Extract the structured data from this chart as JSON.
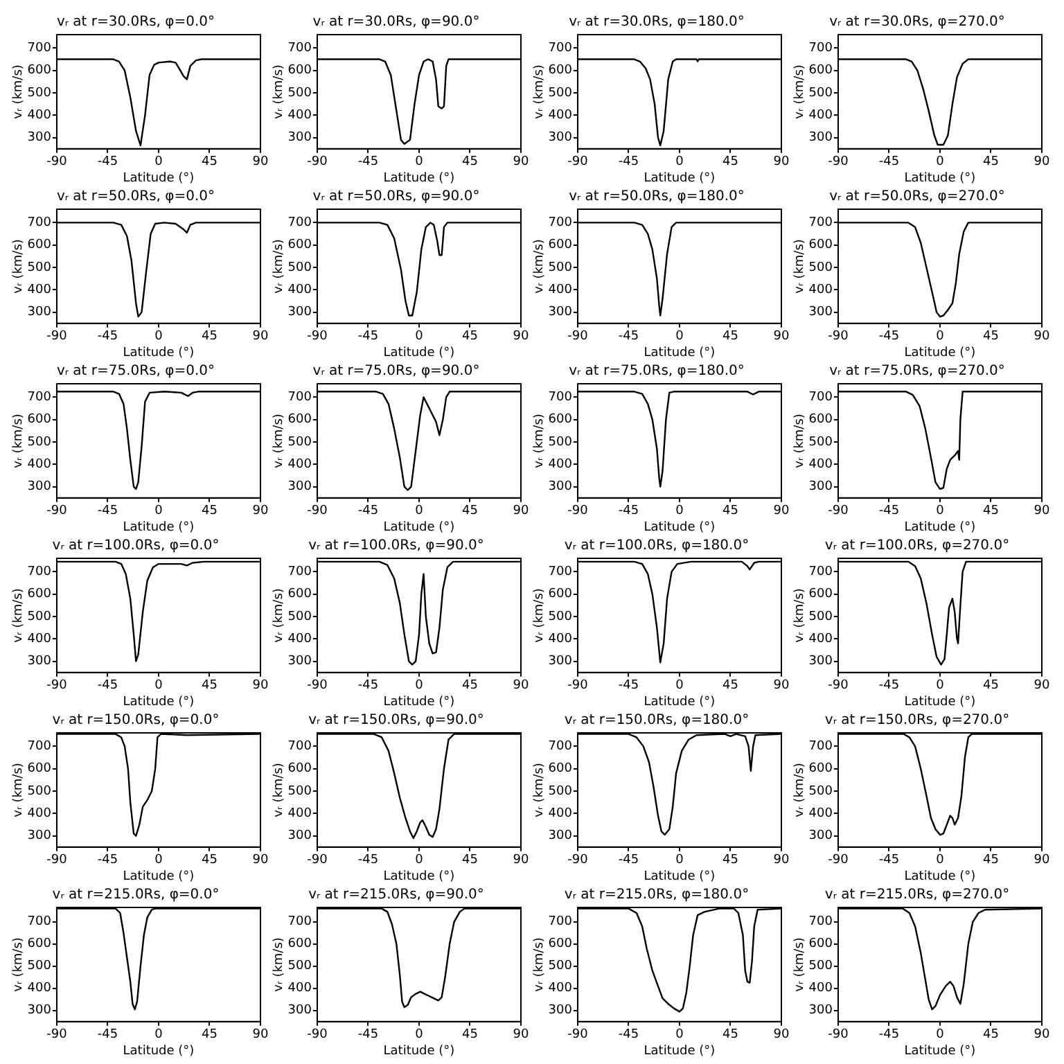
{
  "chart_data": [
    {
      "type": "line",
      "title": "vᵣ at r=30.0Rs, φ=0.0°",
      "xlabel": "Latitude (°)",
      "ylabel": "vᵣ (km/s)",
      "xlim": [
        -90,
        90
      ],
      "xticks": [
        -90,
        -45,
        0,
        45,
        90
      ],
      "ylim": [
        250,
        760
      ],
      "yticks": [
        300,
        400,
        500,
        600,
        700
      ],
      "marker": "none",
      "line_style": "solid",
      "series": [
        {
          "color": "#000000",
          "x": [
            -90,
            -40,
            -35,
            -30,
            -25,
            -20,
            -16,
            -12,
            -8,
            -4,
            0,
            10,
            15,
            18,
            22,
            25,
            28,
            33,
            38,
            90
          ],
          "values": [
            650,
            650,
            640,
            600,
            480,
            330,
            265,
            400,
            580,
            625,
            635,
            640,
            635,
            610,
            575,
            560,
            620,
            645,
            650,
            650
          ]
        }
      ]
    },
    {
      "type": "line",
      "title": "vᵣ at r=30.0Rs, φ=90.0°",
      "xlabel": "Latitude (°)",
      "ylabel": "vᵣ (km/s)",
      "xlim": [
        -90,
        90
      ],
      "xticks": [
        -90,
        -45,
        0,
        45,
        90
      ],
      "ylim": [
        250,
        760
      ],
      "yticks": [
        300,
        400,
        500,
        600,
        700
      ],
      "marker": "none",
      "line_style": "solid",
      "series": [
        {
          "color": "#000000",
          "x": [
            -90,
            -35,
            -30,
            -25,
            -20,
            -16,
            -13,
            -8,
            -4,
            0,
            4,
            8,
            12,
            15,
            17,
            20,
            22,
            24,
            26,
            90
          ],
          "values": [
            650,
            650,
            640,
            580,
            420,
            290,
            272,
            290,
            450,
            580,
            640,
            650,
            640,
            560,
            440,
            430,
            440,
            620,
            650,
            650
          ]
        }
      ]
    },
    {
      "type": "line",
      "title": "vᵣ at r=30.0Rs, φ=180.0°",
      "xlabel": "Latitude (°)",
      "ylabel": "vᵣ (km/s)",
      "xlim": [
        -90,
        90
      ],
      "xticks": [
        -90,
        -45,
        0,
        45,
        90
      ],
      "ylim": [
        250,
        760
      ],
      "yticks": [
        300,
        400,
        500,
        600,
        700
      ],
      "marker": "none",
      "line_style": "solid",
      "series": [
        {
          "color": "#000000",
          "x": [
            -90,
            -40,
            -35,
            -30,
            -26,
            -22,
            -19,
            -17,
            -14,
            -10,
            -6,
            -3,
            15,
            16,
            17,
            90
          ],
          "values": [
            650,
            650,
            640,
            610,
            560,
            450,
            300,
            265,
            330,
            560,
            640,
            650,
            650,
            640,
            650,
            650
          ]
        }
      ]
    },
    {
      "type": "line",
      "title": "vᵣ at r=30.0Rs, φ=270.0°",
      "xlabel": "Latitude (°)",
      "ylabel": "vᵣ (km/s)",
      "xlim": [
        -90,
        90
      ],
      "xticks": [
        -90,
        -45,
        0,
        45,
        90
      ],
      "ylim": [
        250,
        760
      ],
      "yticks": [
        300,
        400,
        500,
        600,
        700
      ],
      "marker": "none",
      "line_style": "solid",
      "series": [
        {
          "color": "#000000",
          "x": [
            -90,
            -30,
            -25,
            -20,
            -15,
            -10,
            -5,
            -2,
            3,
            7,
            11,
            15,
            20,
            25,
            90
          ],
          "values": [
            650,
            650,
            640,
            600,
            520,
            420,
            310,
            268,
            268,
            310,
            450,
            570,
            630,
            650,
            650
          ]
        }
      ]
    },
    {
      "type": "line",
      "title": "vᵣ at r=50.0Rs, φ=0.0°",
      "xlabel": "Latitude (°)",
      "ylabel": "vᵣ (km/s)",
      "xlim": [
        -90,
        90
      ],
      "xticks": [
        -90,
        -45,
        0,
        45,
        90
      ],
      "ylim": [
        250,
        760
      ],
      "yticks": [
        300,
        400,
        500,
        600,
        700
      ],
      "marker": "none",
      "line_style": "solid",
      "series": [
        {
          "color": "#000000",
          "x": [
            -90,
            -40,
            -33,
            -28,
            -24,
            -20,
            -18,
            -15,
            -11,
            -7,
            -3,
            5,
            15,
            22,
            25,
            28,
            33,
            90
          ],
          "values": [
            700,
            700,
            690,
            640,
            530,
            340,
            280,
            300,
            480,
            650,
            695,
            700,
            695,
            670,
            655,
            690,
            700,
            700
          ]
        }
      ]
    },
    {
      "type": "line",
      "title": "vᵣ at r=50.0Rs, φ=90.0°",
      "xlabel": "Latitude (°)",
      "ylabel": "vᵣ (km/s)",
      "xlim": [
        -90,
        90
      ],
      "xticks": [
        -90,
        -45,
        0,
        45,
        90
      ],
      "ylim": [
        250,
        760
      ],
      "yticks": [
        300,
        400,
        500,
        600,
        700
      ],
      "marker": "none",
      "line_style": "solid",
      "series": [
        {
          "color": "#000000",
          "x": [
            -90,
            -35,
            -28,
            -22,
            -16,
            -12,
            -9,
            -6,
            -2,
            2,
            6,
            10,
            13,
            16,
            18,
            20,
            22,
            25,
            90
          ],
          "values": [
            700,
            700,
            690,
            630,
            490,
            350,
            285,
            285,
            390,
            580,
            680,
            700,
            690,
            620,
            555,
            555,
            680,
            700,
            700
          ]
        }
      ]
    },
    {
      "type": "line",
      "title": "vᵣ at r=50.0Rs, φ=180.0°",
      "xlabel": "Latitude (°)",
      "ylabel": "vᵣ (km/s)",
      "xlim": [
        -90,
        90
      ],
      "xticks": [
        -90,
        -45,
        0,
        45,
        90
      ],
      "ylim": [
        250,
        760
      ],
      "yticks": [
        300,
        400,
        500,
        600,
        700
      ],
      "marker": "none",
      "line_style": "solid",
      "series": [
        {
          "color": "#000000",
          "x": [
            -90,
            -40,
            -33,
            -28,
            -24,
            -20,
            -18,
            -17,
            -15,
            -11,
            -7,
            -3,
            90
          ],
          "values": [
            700,
            700,
            690,
            650,
            580,
            450,
            330,
            285,
            360,
            560,
            680,
            700,
            700
          ]
        }
      ]
    },
    {
      "type": "line",
      "title": "vᵣ at r=50.0Rs, φ=270.0°",
      "xlabel": "Latitude (°)",
      "ylabel": "vᵣ (km/s)",
      "xlim": [
        -90,
        90
      ],
      "xticks": [
        -90,
        -45,
        0,
        45,
        90
      ],
      "ylim": [
        250,
        760
      ],
      "yticks": [
        300,
        400,
        500,
        600,
        700
      ],
      "marker": "none",
      "line_style": "solid",
      "series": [
        {
          "color": "#000000",
          "x": [
            -90,
            -28,
            -22,
            -17,
            -12,
            -7,
            -3,
            0,
            3,
            7,
            11,
            14,
            17,
            21,
            25,
            90
          ],
          "values": [
            700,
            700,
            680,
            610,
            500,
            390,
            300,
            280,
            285,
            310,
            340,
            430,
            560,
            660,
            700,
            700
          ]
        }
      ]
    },
    {
      "type": "line",
      "title": "vᵣ at r=75.0Rs, φ=0.0°",
      "xlabel": "Latitude (°)",
      "ylabel": "vᵣ (km/s)",
      "xlim": [
        -90,
        90
      ],
      "xticks": [
        -90,
        -45,
        0,
        45,
        90
      ],
      "ylim": [
        250,
        760
      ],
      "yticks": [
        300,
        400,
        500,
        600,
        700
      ],
      "marker": "none",
      "line_style": "solid",
      "series": [
        {
          "color": "#000000",
          "x": [
            -90,
            -40,
            -35,
            -31,
            -28,
            -25,
            -22,
            -20,
            -18,
            -15,
            -12,
            -8,
            5,
            20,
            26,
            30,
            35,
            90
          ],
          "values": [
            725,
            725,
            715,
            670,
            560,
            420,
            300,
            290,
            320,
            480,
            680,
            720,
            725,
            720,
            705,
            720,
            725,
            725
          ]
        }
      ]
    },
    {
      "type": "line",
      "title": "vᵣ at r=75.0Rs, φ=90.0°",
      "xlabel": "Latitude (°)",
      "ylabel": "vᵣ (km/s)",
      "xlim": [
        -90,
        90
      ],
      "xticks": [
        -90,
        -45,
        0,
        45,
        90
      ],
      "ylim": [
        250,
        760
      ],
      "yticks": [
        300,
        400,
        500,
        600,
        700
      ],
      "marker": "none",
      "line_style": "solid",
      "series": [
        {
          "color": "#000000",
          "x": [
            -90,
            -38,
            -32,
            -27,
            -22,
            -17,
            -13,
            -10,
            -7,
            -3,
            1,
            4,
            7,
            11,
            15,
            18,
            21,
            24,
            27,
            90
          ],
          "values": [
            725,
            725,
            715,
            670,
            560,
            430,
            300,
            285,
            300,
            460,
            620,
            700,
            670,
            630,
            590,
            530,
            600,
            700,
            725,
            725
          ]
        }
      ]
    },
    {
      "type": "line",
      "title": "vᵣ at r=75.0Rs, φ=180.0°",
      "xlabel": "Latitude (°)",
      "ylabel": "vᵣ (km/s)",
      "xlim": [
        -90,
        90
      ],
      "xticks": [
        -90,
        -45,
        0,
        45,
        90
      ],
      "ylim": [
        250,
        760
      ],
      "yticks": [
        300,
        400,
        500,
        600,
        700
      ],
      "marker": "none",
      "line_style": "solid",
      "series": [
        {
          "color": "#000000",
          "x": [
            -90,
            -40,
            -33,
            -28,
            -24,
            -20,
            -18,
            -17,
            -15,
            -12,
            -9,
            -5,
            60,
            65,
            70,
            90
          ],
          "values": [
            725,
            725,
            715,
            670,
            600,
            470,
            340,
            300,
            370,
            600,
            720,
            725,
            725,
            712,
            725,
            725
          ]
        }
      ]
    },
    {
      "type": "line",
      "title": "vᵣ at r=75.0Rs, φ=270.0°",
      "xlabel": "Latitude (°)",
      "ylabel": "vᵣ (km/s)",
      "xlim": [
        -90,
        90
      ],
      "xticks": [
        -90,
        -45,
        0,
        45,
        90
      ],
      "ylim": [
        250,
        760
      ],
      "yticks": [
        300,
        400,
        500,
        600,
        700
      ],
      "marker": "none",
      "line_style": "solid",
      "series": [
        {
          "color": "#000000",
          "x": [
            -90,
            -30,
            -24,
            -18,
            -13,
            -8,
            -4,
            0,
            3,
            6,
            9,
            13,
            16,
            17,
            18,
            20,
            90
          ],
          "values": [
            725,
            725,
            710,
            660,
            560,
            430,
            320,
            290,
            295,
            380,
            420,
            440,
            460,
            420,
            600,
            725,
            725
          ]
        }
      ]
    },
    {
      "type": "line",
      "title": "vᵣ at r=100.0Rs, φ=0.0°",
      "xlabel": "Latitude (°)",
      "ylabel": "vᵣ (km/s)",
      "xlim": [
        -90,
        90
      ],
      "xticks": [
        -90,
        -45,
        0,
        45,
        90
      ],
      "ylim": [
        250,
        760
      ],
      "yticks": [
        300,
        400,
        500,
        600,
        700
      ],
      "marker": "none",
      "line_style": "solid",
      "series": [
        {
          "color": "#000000",
          "x": [
            -90,
            -38,
            -33,
            -29,
            -25,
            -22,
            -20,
            -18,
            -14,
            -10,
            -5,
            0,
            20,
            25,
            30,
            40,
            90
          ],
          "values": [
            745,
            745,
            735,
            690,
            580,
            420,
            300,
            330,
            520,
            660,
            720,
            735,
            735,
            728,
            740,
            745,
            745
          ]
        }
      ]
    },
    {
      "type": "line",
      "title": "vᵣ at r=100.0Rs, φ=90.0°",
      "xlabel": "Latitude (°)",
      "ylabel": "vᵣ (km/s)",
      "xlim": [
        -90,
        90
      ],
      "xticks": [
        -90,
        -45,
        0,
        45,
        90
      ],
      "ylim": [
        250,
        760
      ],
      "yticks": [
        300,
        400,
        500,
        600,
        700
      ],
      "marker": "none",
      "line_style": "solid",
      "series": [
        {
          "color": "#000000",
          "x": [
            -90,
            -35,
            -28,
            -22,
            -17,
            -13,
            -9,
            -6,
            -3,
            0,
            2,
            4,
            6,
            9,
            12,
            15,
            18,
            21,
            25,
            30,
            90
          ],
          "values": [
            745,
            745,
            730,
            670,
            560,
            420,
            300,
            285,
            300,
            420,
            600,
            690,
            500,
            380,
            335,
            340,
            450,
            620,
            720,
            745,
            745
          ]
        }
      ]
    },
    {
      "type": "line",
      "title": "vᵣ at r=100.0Rs, φ=180.0°",
      "xlabel": "Latitude (°)",
      "ylabel": "vᵣ (km/s)",
      "xlim": [
        -90,
        90
      ],
      "xticks": [
        -90,
        -45,
        0,
        45,
        90
      ],
      "ylim": [
        250,
        760
      ],
      "yticks": [
        300,
        400,
        500,
        600,
        700
      ],
      "marker": "none",
      "line_style": "solid",
      "series": [
        {
          "color": "#000000",
          "x": [
            -90,
            -40,
            -33,
            -28,
            -24,
            -20,
            -17,
            -14,
            -11,
            -7,
            -2,
            10,
            55,
            60,
            62,
            66,
            70,
            90
          ],
          "values": [
            745,
            745,
            735,
            690,
            600,
            450,
            295,
            380,
            580,
            700,
            735,
            745,
            745,
            725,
            710,
            740,
            745,
            745
          ]
        }
      ]
    },
    {
      "type": "line",
      "title": "vᵣ at r=100.0Rs, φ=270.0°",
      "xlabel": "Latitude (°)",
      "ylabel": "vᵣ (km/s)",
      "xlim": [
        -90,
        90
      ],
      "xticks": [
        -90,
        -45,
        0,
        45,
        90
      ],
      "ylim": [
        250,
        760
      ],
      "yticks": [
        300,
        400,
        500,
        600,
        700
      ],
      "marker": "none",
      "line_style": "solid",
      "series": [
        {
          "color": "#000000",
          "x": [
            -90,
            -28,
            -22,
            -17,
            -12,
            -7,
            -3,
            1,
            4,
            6,
            8,
            11,
            13,
            15,
            16,
            18,
            20,
            23,
            90
          ],
          "values": [
            745,
            745,
            725,
            670,
            560,
            420,
            320,
            285,
            310,
            420,
            540,
            580,
            520,
            400,
            380,
            550,
            700,
            745,
            745
          ]
        }
      ]
    },
    {
      "type": "line",
      "title": "vᵣ at r=150.0Rs, φ=0.0°",
      "xlabel": "Latitude (°)",
      "ylabel": "vᵣ (km/s)",
      "xlim": [
        -90,
        90
      ],
      "xticks": [
        -90,
        -45,
        0,
        45,
        90
      ],
      "ylim": [
        250,
        760
      ],
      "yticks": [
        300,
        400,
        500,
        600,
        700
      ],
      "marker": "none",
      "line_style": "solid",
      "series": [
        {
          "color": "#000000",
          "x": [
            -90,
            -38,
            -33,
            -30,
            -27,
            -25,
            -22,
            -20,
            -17,
            -14,
            -10,
            -6,
            -3,
            -1,
            2,
            25,
            90
          ],
          "values": [
            755,
            755,
            740,
            700,
            600,
            450,
            310,
            300,
            350,
            430,
            460,
            500,
            600,
            740,
            755,
            750,
            755
          ]
        }
      ]
    },
    {
      "type": "line",
      "title": "vᵣ at r=150.0Rs, φ=90.0°",
      "xlabel": "Latitude (°)",
      "ylabel": "vᵣ (km/s)",
      "xlim": [
        -90,
        90
      ],
      "xticks": [
        -90,
        -45,
        0,
        45,
        90
      ],
      "ylim": [
        250,
        760
      ],
      "yticks": [
        300,
        400,
        500,
        600,
        700
      ],
      "marker": "none",
      "line_style": "solid",
      "series": [
        {
          "color": "#000000",
          "x": [
            -90,
            -40,
            -33,
            -27,
            -22,
            -17,
            -12,
            -8,
            -5,
            -2,
            1,
            3,
            6,
            9,
            12,
            15,
            18,
            22,
            26,
            31,
            90
          ],
          "values": [
            755,
            755,
            740,
            680,
            580,
            470,
            380,
            320,
            290,
            320,
            360,
            370,
            340,
            305,
            295,
            330,
            420,
            600,
            730,
            755,
            755
          ]
        }
      ]
    },
    {
      "type": "line",
      "title": "vᵣ at r=150.0Rs, φ=180.0°",
      "xlabel": "Latitude (°)",
      "ylabel": "vᵣ (km/s)",
      "xlim": [
        -90,
        90
      ],
      "xticks": [
        -90,
        -45,
        0,
        45,
        90
      ],
      "ylim": [
        250,
        760
      ],
      "yticks": [
        300,
        400,
        500,
        600,
        700
      ],
      "marker": "none",
      "line_style": "solid",
      "series": [
        {
          "color": "#000000",
          "x": [
            -90,
            -45,
            -38,
            -32,
            -27,
            -23,
            -19,
            -16,
            -13,
            -9,
            -6,
            -3,
            2,
            8,
            15,
            40,
            45,
            50,
            58,
            61,
            63,
            65,
            67,
            90
          ],
          "values": [
            755,
            755,
            740,
            700,
            630,
            520,
            390,
            320,
            305,
            330,
            430,
            580,
            680,
            730,
            750,
            755,
            745,
            755,
            745,
            700,
            590,
            700,
            750,
            755
          ]
        }
      ]
    },
    {
      "type": "line",
      "title": "vᵣ at r=150.0Rs, φ=270.0°",
      "xlabel": "Latitude (°)",
      "ylabel": "vᵣ (km/s)",
      "xlim": [
        -90,
        90
      ],
      "xticks": [
        -90,
        -45,
        0,
        45,
        90
      ],
      "ylim": [
        250,
        760
      ],
      "yticks": [
        300,
        400,
        500,
        600,
        700
      ],
      "marker": "none",
      "line_style": "solid",
      "series": [
        {
          "color": "#000000",
          "x": [
            -90,
            -32,
            -27,
            -22,
            -17,
            -12,
            -8,
            -4,
            0,
            3,
            6,
            9,
            11,
            13,
            16,
            19,
            22,
            25,
            28,
            90
          ],
          "values": [
            755,
            755,
            740,
            700,
            600,
            480,
            380,
            330,
            305,
            310,
            350,
            390,
            380,
            350,
            380,
            480,
            650,
            740,
            755,
            755
          ]
        }
      ]
    },
    {
      "type": "line",
      "title": "vᵣ at r=215.0Rs, φ=0.0°",
      "xlabel": "Latitude (°)",
      "ylabel": "vᵣ (km/s)",
      "xlim": [
        -90,
        90
      ],
      "xticks": [
        -90,
        -45,
        0,
        45,
        90
      ],
      "ylim": [
        250,
        765
      ],
      "yticks": [
        300,
        400,
        500,
        600,
        700
      ],
      "marker": "none",
      "line_style": "solid",
      "series": [
        {
          "color": "#000000",
          "x": [
            -90,
            -38,
            -34,
            -31,
            -28,
            -25,
            -23,
            -21,
            -19,
            -16,
            -13,
            -10,
            -6,
            -3,
            90
          ],
          "values": [
            760,
            760,
            740,
            650,
            540,
            430,
            330,
            305,
            340,
            500,
            640,
            720,
            755,
            760,
            760
          ]
        }
      ]
    },
    {
      "type": "line",
      "title": "vᵣ at r=215.0Rs, φ=90.0°",
      "xlabel": "Latitude (°)",
      "ylabel": "vᵣ (km/s)",
      "xlim": [
        -90,
        90
      ],
      "xticks": [
        -90,
        -45,
        0,
        45,
        90
      ],
      "ylim": [
        250,
        765
      ],
      "yticks": [
        300,
        400,
        500,
        600,
        700
      ],
      "marker": "none",
      "line_style": "solid",
      "series": [
        {
          "color": "#000000",
          "x": [
            -90,
            -33,
            -28,
            -24,
            -20,
            -17,
            -15,
            -13,
            -10,
            -7,
            -3,
            1,
            5,
            9,
            13,
            17,
            20,
            23,
            27,
            31,
            36,
            40,
            90
          ],
          "values": [
            760,
            760,
            745,
            690,
            600,
            460,
            340,
            315,
            325,
            360,
            375,
            385,
            375,
            365,
            355,
            345,
            360,
            450,
            600,
            700,
            745,
            760,
            760
          ]
        }
      ]
    },
    {
      "type": "line",
      "title": "vᵣ at r=215.0Rs, φ=180.0°",
      "xlabel": "Latitude (°)",
      "ylabel": "vᵣ (km/s)",
      "xlim": [
        -90,
        90
      ],
      "xticks": [
        -90,
        -45,
        0,
        45,
        90
      ],
      "ylim": [
        250,
        765
      ],
      "yticks": [
        300,
        400,
        500,
        600,
        700
      ],
      "marker": "none",
      "line_style": "solid",
      "series": [
        {
          "color": "#000000",
          "x": [
            -90,
            -45,
            -38,
            -33,
            -29,
            -24,
            -19,
            -15,
            -10,
            -5,
            0,
            3,
            6,
            9,
            12,
            16,
            22,
            35,
            48,
            52,
            56,
            58,
            60,
            62,
            64,
            66,
            69,
            90
          ],
          "values": [
            760,
            760,
            740,
            680,
            580,
            480,
            410,
            355,
            330,
            310,
            295,
            310,
            380,
            500,
            640,
            730,
            745,
            760,
            760,
            740,
            640,
            480,
            430,
            425,
            520,
            680,
            755,
            760
          ]
        }
      ]
    },
    {
      "type": "line",
      "title": "vᵣ at r=215.0Rs, φ=270.0°",
      "xlabel": "Latitude (°)",
      "ylabel": "vᵣ (km/s)",
      "xlim": [
        -90,
        90
      ],
      "xticks": [
        -90,
        -45,
        0,
        45,
        90
      ],
      "ylim": [
        250,
        765
      ],
      "yticks": [
        300,
        400,
        500,
        600,
        700
      ],
      "marker": "none",
      "line_style": "solid",
      "series": [
        {
          "color": "#000000",
          "x": [
            -90,
            -33,
            -27,
            -22,
            -17,
            -13,
            -10,
            -7,
            -4,
            0,
            5,
            9,
            12,
            15,
            18,
            21,
            25,
            29,
            34,
            40,
            90
          ],
          "values": [
            760,
            760,
            740,
            680,
            560,
            440,
            350,
            305,
            320,
            370,
            410,
            430,
            410,
            360,
            330,
            420,
            600,
            700,
            740,
            755,
            760
          ]
        }
      ]
    }
  ]
}
